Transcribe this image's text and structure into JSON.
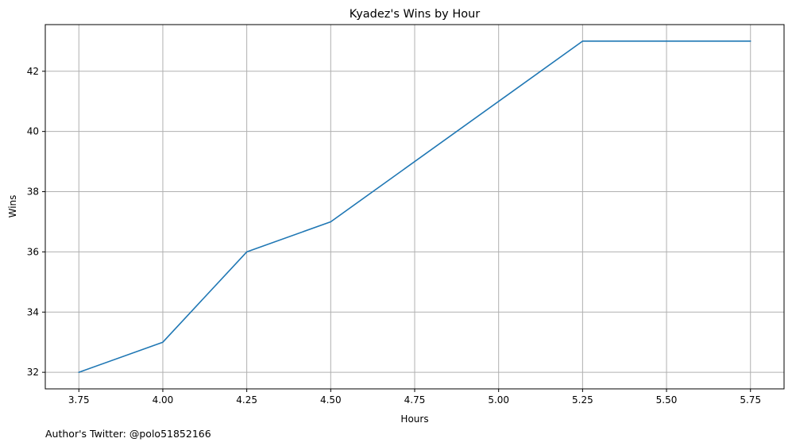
{
  "chart_data": {
    "type": "line",
    "title": "Kyadez's Wins by Hour",
    "xlabel": "Hours",
    "ylabel": "Wins",
    "x": [
      3.75,
      4.0,
      4.25,
      4.5,
      5.25,
      5.5,
      5.75
    ],
    "series": [
      {
        "values": [
          32,
          33,
          36,
          37,
          43,
          43,
          43
        ],
        "color": "#1f77b4"
      }
    ],
    "xlim": [
      3.65,
      5.85
    ],
    "ylim": [
      31.45,
      43.55
    ],
    "xticks": [
      3.75,
      4.0,
      4.25,
      4.5,
      4.75,
      5.0,
      5.25,
      5.5,
      5.75
    ],
    "xtick_labels": [
      "3.75",
      "4.00",
      "4.25",
      "4.50",
      "4.75",
      "5.00",
      "5.25",
      "5.50",
      "5.75"
    ],
    "yticks": [
      32,
      34,
      36,
      38,
      40,
      42
    ],
    "ytick_labels": [
      "32",
      "34",
      "36",
      "38",
      "40",
      "42"
    ],
    "grid": true,
    "grid_color": "#b0b0b0"
  },
  "footnote": "Author's Twitter: @polo51852166"
}
